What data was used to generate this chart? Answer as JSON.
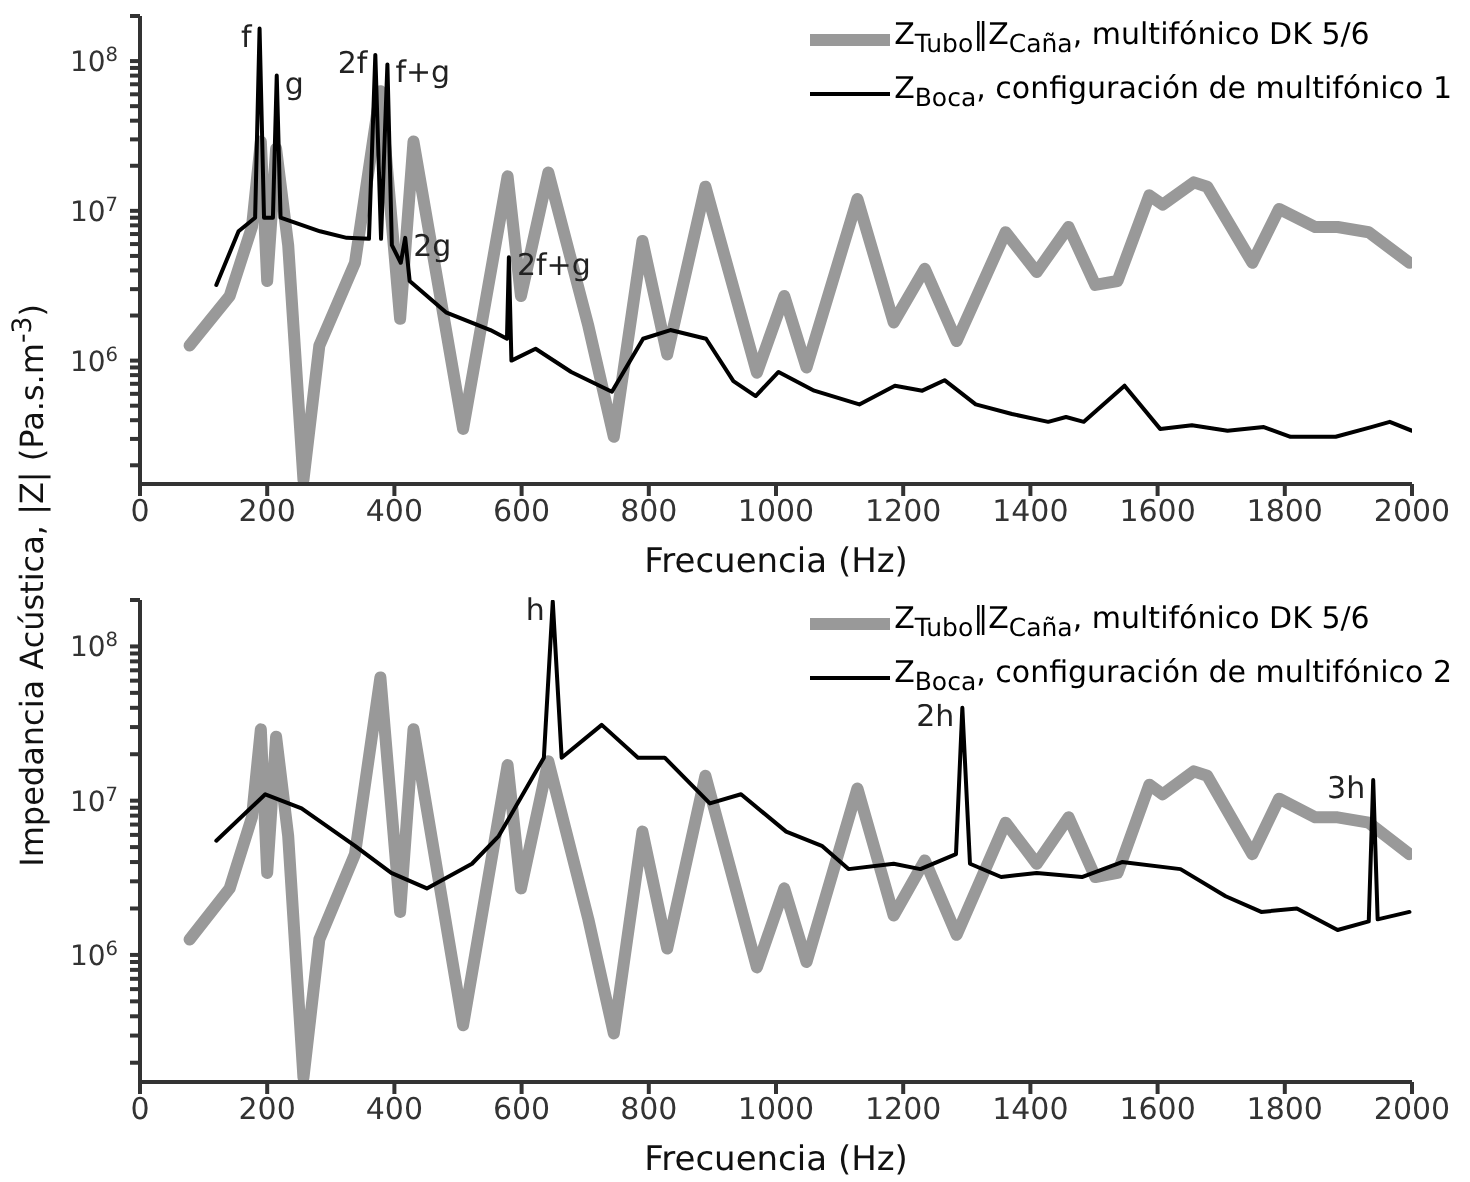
{
  "chart_data": [
    {
      "type": "line",
      "xlabel": "Frecuencia (Hz)",
      "ylabel": "Impedancia Acústica, |Z| (Pa.s.m$^{-3}$)",
      "log": "y",
      "legend": "top right",
      "marker": "none",
      "xlim": [
        0,
        2000
      ],
      "xticks": [
        0,
        200,
        400,
        600,
        800,
        1000,
        1200,
        1400,
        1600,
        1800,
        2000
      ],
      "ylim": [
        150000,
        200000000
      ],
      "yticks": [
        {
          "value": 200000,
          "label": null
        },
        {
          "value": 300000,
          "label": null
        },
        {
          "value": 400000,
          "label": null
        },
        {
          "value": 500000,
          "label": null
        },
        {
          "value": 600000,
          "label": null
        },
        {
          "value": 700000,
          "label": null
        },
        {
          "value": 800000,
          "label": null
        },
        {
          "value": 900000,
          "label": null
        },
        {
          "value": 1000000,
          "label": "10$^{6}$"
        },
        {
          "value": 2000000,
          "label": null
        },
        {
          "value": 3000000,
          "label": null
        },
        {
          "value": 4000000,
          "label": null
        },
        {
          "value": 5000000,
          "label": null
        },
        {
          "value": 6000000,
          "label": null
        },
        {
          "value": 7000000,
          "label": null
        },
        {
          "value": 8000000,
          "label": null
        },
        {
          "value": 9000000,
          "label": null
        },
        {
          "value": 10000000,
          "label": "10$^{7}$"
        },
        {
          "value": 20000000,
          "label": null
        },
        {
          "value": 30000000,
          "label": null
        },
        {
          "value": 40000000,
          "label": null
        },
        {
          "value": 50000000,
          "label": null
        },
        {
          "value": 60000000,
          "label": null
        },
        {
          "value": 70000000,
          "label": null
        },
        {
          "value": 80000000,
          "label": null
        },
        {
          "value": 90000000,
          "label": null
        },
        {
          "value": 100000000,
          "label": "10$^{8}$"
        },
        {
          "value": 200000000,
          "label": null
        }
      ],
      "series": [
        {
          "name": "Z$_{Tubo}$‖Z$_{Caña}$, multifónico DK 5/6",
          "color": "#999999",
          "x": [
            78,
            141,
            176,
            190,
            200,
            214,
            233,
            257,
            282,
            338,
            378,
            409,
            430,
            508,
            578,
            599,
            642,
            705,
            745,
            790,
            829,
            889,
            970,
            1013,
            1048,
            1128,
            1185,
            1234,
            1284,
            1361,
            1410,
            1460,
            1502,
            1537,
            1587,
            1608,
            1657,
            1678,
            1749,
            1791,
            1848,
            1883,
            1932,
            1996
          ],
          "values": [
            1260000,
            2700000,
            7800000,
            29000000,
            3400000,
            26000000,
            5900000,
            160000,
            1260000,
            4500000,
            63000000,
            1900000,
            29000000,
            350000,
            17000000,
            2700000,
            18000000,
            1700000,
            310000,
            6300000,
            1100000,
            14500000,
            830000,
            2700000,
            900000,
            12000000,
            1800000,
            4100000,
            1350000,
            7200000,
            3900000,
            7800000,
            3200000,
            3400000,
            12700000,
            11000000,
            15500000,
            14500000,
            4500000,
            10300000,
            7800000,
            7800000,
            7200000,
            4500000
          ]
        },
        {
          "name": "Z$_{Boca}$, configuración de multifónico 1",
          "color": "#000000",
          "x": [
            120,
            155,
            181,
            188,
            195,
            209,
            215,
            221,
            283,
            325,
            360,
            370,
            379,
            389,
            396,
            410,
            417,
            424,
            481,
            551,
            577,
            580,
            584,
            622,
            678,
            742,
            791,
            834,
            890,
            933,
            968,
            1004,
            1060,
            1131,
            1187,
            1230,
            1265,
            1314,
            1371,
            1428,
            1456,
            1484,
            1548,
            1604,
            1654,
            1710,
            1767,
            1809,
            1880,
            1936,
            1965,
            2000
          ],
          "values": [
            3200000,
            7300000,
            9000000,
            165000000,
            9000000,
            9000000,
            80000000,
            9000000,
            7300000,
            6600000,
            6500000,
            110000000,
            6500000,
            95000000,
            5900000,
            4500000,
            6600000,
            3400000,
            2100000,
            1600000,
            1400000,
            4900000,
            1000000,
            1200000,
            840000,
            620000,
            1400000,
            1600000,
            1400000,
            730000,
            580000,
            840000,
            630000,
            510000,
            680000,
            630000,
            740000,
            510000,
            440000,
            390000,
            420000,
            390000,
            680000,
            350000,
            370000,
            340000,
            360000,
            310000,
            310000,
            360000,
            390000,
            340000
          ]
        }
      ],
      "annotations": [
        {
          "text": "f",
          "x": 188,
          "y": 165000000
        },
        {
          "text": "g",
          "x": 215,
          "y": 80000000
        },
        {
          "text": "2f",
          "x": 370,
          "y": 110000000
        },
        {
          "text": "f+g",
          "x": 389,
          "y": 95000000
        },
        {
          "text": "2g",
          "x": 417,
          "y": 6600000
        },
        {
          "text": "2f+g",
          "x": 580,
          "y": 4900000
        }
      ]
    },
    {
      "type": "line",
      "xlabel": "Frecuencia (Hz)",
      "log": "y",
      "legend": "top right",
      "marker": "none",
      "xlim": [
        0,
        2000
      ],
      "xticks": [
        0,
        200,
        400,
        600,
        800,
        1000,
        1200,
        1400,
        1600,
        1800,
        2000
      ],
      "ylim": [
        150000,
        200000000
      ],
      "yticks": [
        {
          "value": 200000,
          "label": null
        },
        {
          "value": 300000,
          "label": null
        },
        {
          "value": 400000,
          "label": null
        },
        {
          "value": 500000,
          "label": null
        },
        {
          "value": 600000,
          "label": null
        },
        {
          "value": 700000,
          "label": null
        },
        {
          "value": 800000,
          "label": null
        },
        {
          "value": 900000,
          "label": null
        },
        {
          "value": 1000000,
          "label": "10$^{6}$"
        },
        {
          "value": 2000000,
          "label": null
        },
        {
          "value": 3000000,
          "label": null
        },
        {
          "value": 4000000,
          "label": null
        },
        {
          "value": 5000000,
          "label": null
        },
        {
          "value": 6000000,
          "label": null
        },
        {
          "value": 7000000,
          "label": null
        },
        {
          "value": 8000000,
          "label": null
        },
        {
          "value": 9000000,
          "label": null
        },
        {
          "value": 10000000,
          "label": "10$^{7}$"
        },
        {
          "value": 20000000,
          "label": null
        },
        {
          "value": 30000000,
          "label": null
        },
        {
          "value": 40000000,
          "label": null
        },
        {
          "value": 50000000,
          "label": null
        },
        {
          "value": 60000000,
          "label": null
        },
        {
          "value": 70000000,
          "label": null
        },
        {
          "value": 80000000,
          "label": null
        },
        {
          "value": 90000000,
          "label": null
        },
        {
          "value": 100000000,
          "label": "10$^{8}$"
        },
        {
          "value": 200000000,
          "label": null
        }
      ],
      "series": [
        {
          "name": "Z$_{Tubo}$‖Z$_{Caña}$, multifónico DK 5/6",
          "color": "#999999",
          "x": [
            78,
            141,
            176,
            190,
            200,
            214,
            233,
            257,
            282,
            338,
            378,
            409,
            430,
            508,
            578,
            599,
            642,
            705,
            745,
            790,
            829,
            889,
            970,
            1013,
            1048,
            1128,
            1185,
            1234,
            1284,
            1361,
            1410,
            1460,
            1502,
            1537,
            1587,
            1608,
            1657,
            1678,
            1749,
            1791,
            1848,
            1883,
            1932,
            1996
          ],
          "values": [
            1260000,
            2700000,
            7800000,
            29000000,
            3400000,
            26000000,
            5900000,
            160000,
            1260000,
            4500000,
            63000000,
            1900000,
            29000000,
            350000,
            17000000,
            2700000,
            18000000,
            1700000,
            310000,
            6300000,
            1100000,
            14500000,
            830000,
            2700000,
            900000,
            12000000,
            1800000,
            4100000,
            1350000,
            7200000,
            3900000,
            7800000,
            3200000,
            3400000,
            12700000,
            11000000,
            15500000,
            14500000,
            4500000,
            10300000,
            7800000,
            7800000,
            7200000,
            4500000
          ]
        },
        {
          "name": "Z$_{Boca}$, configuración de multifónico 2",
          "color": "#000000",
          "x": [
            120,
            197,
            254,
            338,
            395,
            451,
            522,
            564,
            635,
            649,
            663,
            726,
            783,
            825,
            896,
            945,
            1016,
            1072,
            1114,
            1185,
            1227,
            1283,
            1293,
            1305,
            1354,
            1410,
            1481,
            1544,
            1636,
            1707,
            1763,
            1819,
            1883,
            1932,
            1939,
            1946,
            1996
          ],
          "values": [
            5500000,
            11000000,
            8900000,
            5100000,
            3400000,
            2700000,
            3900000,
            5900000,
            19000000,
            195000000,
            19000000,
            31000000,
            19000000,
            19000000,
            9600000,
            11000000,
            6300000,
            5100000,
            3600000,
            3900000,
            3600000,
            4500000,
            40000000,
            3900000,
            3200000,
            3400000,
            3200000,
            4000000,
            3600000,
            2400000,
            1900000,
            2000000,
            1450000,
            1650000,
            13600000,
            1700000,
            1900000
          ]
        }
      ],
      "annotations": [
        {
          "text": "h",
          "x": 649,
          "y": 195000000
        },
        {
          "text": "2h",
          "x": 1293,
          "y": 40000000
        },
        {
          "text": "3h",
          "x": 1939,
          "y": 13600000
        }
      ]
    }
  ]
}
